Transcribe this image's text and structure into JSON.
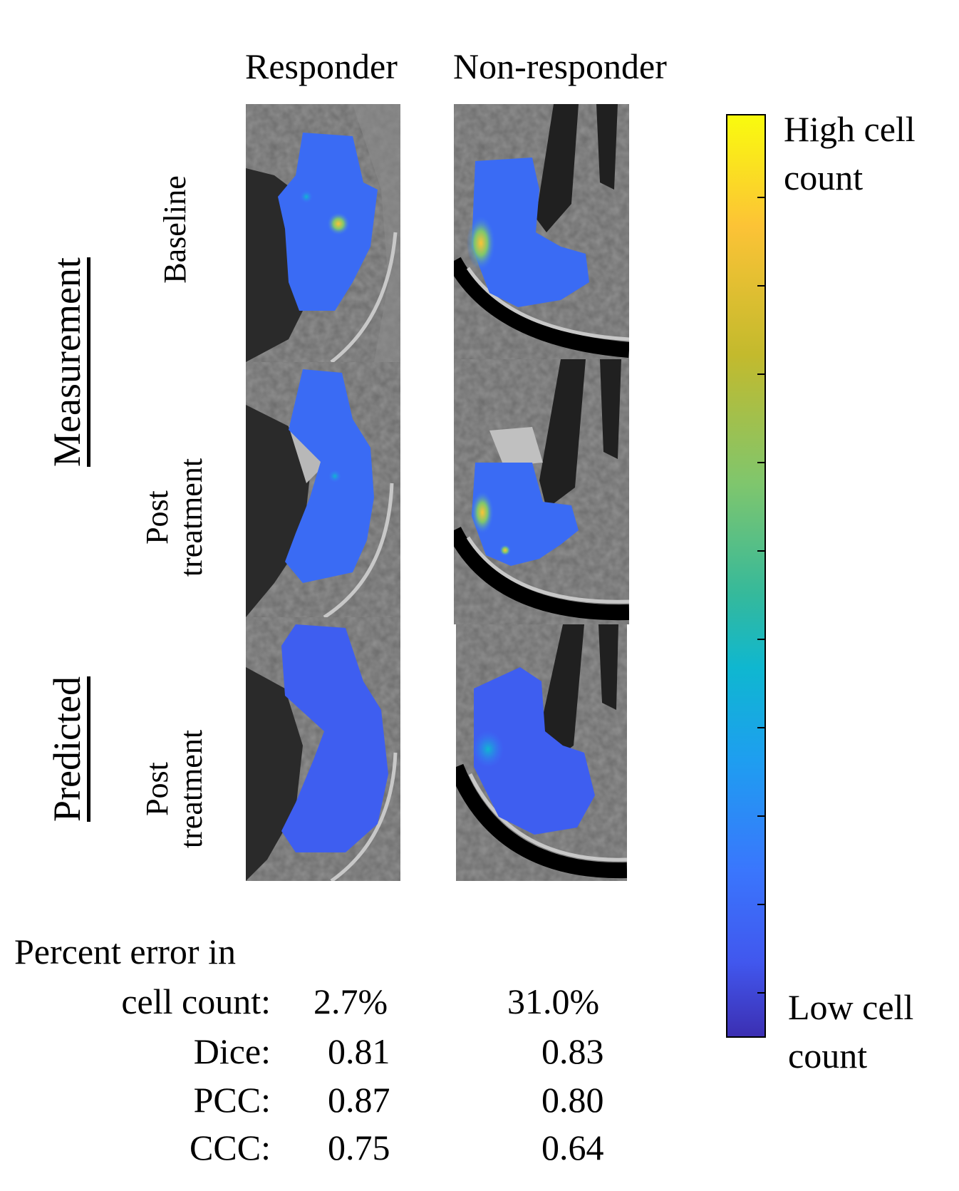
{
  "columns": [
    "Responder",
    "Non-responder"
  ],
  "groups": {
    "measurement": "Measurement",
    "predicted": "Predicted"
  },
  "rows": {
    "baseline": "Baseline",
    "post1": [
      "Post",
      "treatment"
    ],
    "post2": [
      "Post",
      "treatment"
    ]
  },
  "colorbar": {
    "high_label": [
      "High cell",
      "count"
    ],
    "low_label": [
      "Low cell",
      "count"
    ],
    "tick_count": 10,
    "colors": [
      "#f9fb0e",
      "#fcc336",
      "#c3ba2d",
      "#7fc66d",
      "#35b99b",
      "#0fb7d0",
      "#1e9ef0",
      "#3a76fd",
      "#4157ee",
      "#3c2fb2"
    ]
  },
  "metrics": {
    "heading": "Percent error in",
    "rows": [
      {
        "label": "cell count:",
        "responder": "2.7%",
        "non_responder": "31.0%"
      },
      {
        "label": "Dice:",
        "responder": "0.81",
        "non_responder": "0.83"
      },
      {
        "label": "PCC:",
        "responder": "0.87",
        "non_responder": "0.80"
      },
      {
        "label": "CCC:",
        "responder": "0.75",
        "non_responder": "0.64"
      }
    ]
  },
  "panels": [
    {
      "id": "responder-baseline",
      "description": "responder baseline cell map"
    },
    {
      "id": "responder-post",
      "description": "responder post treatment cell map"
    },
    {
      "id": "responder-predicted",
      "description": "responder predicted cell map"
    },
    {
      "id": "nonresponder-baseline",
      "description": "non-responder baseline cell map"
    },
    {
      "id": "nonresponder-post",
      "description": "non-responder post treatment cell map"
    },
    {
      "id": "nonresponder-predicted",
      "description": "non-responder predicted cell map"
    }
  ]
}
